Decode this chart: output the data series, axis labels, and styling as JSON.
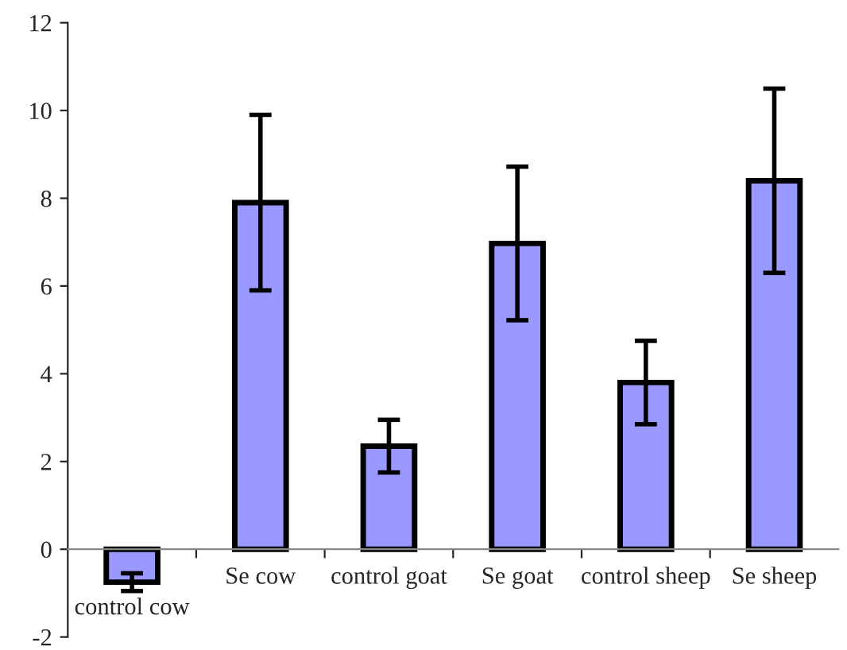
{
  "chart_data": {
    "type": "bar",
    "categories": [
      "control cow",
      "Se cow",
      "control goat",
      "Se goat",
      "control sheep",
      "Se sheep"
    ],
    "values": [
      -0.75,
      7.9,
      2.35,
      6.97,
      3.8,
      8.4
    ],
    "errors": [
      0.2,
      2.0,
      0.6,
      1.75,
      0.95,
      2.1
    ],
    "color": "#9999ff",
    "ylim": [
      -2,
      12
    ],
    "yticks": [
      -2,
      0,
      2,
      4,
      6,
      8,
      10,
      12
    ],
    "grid": false,
    "legend": false
  }
}
